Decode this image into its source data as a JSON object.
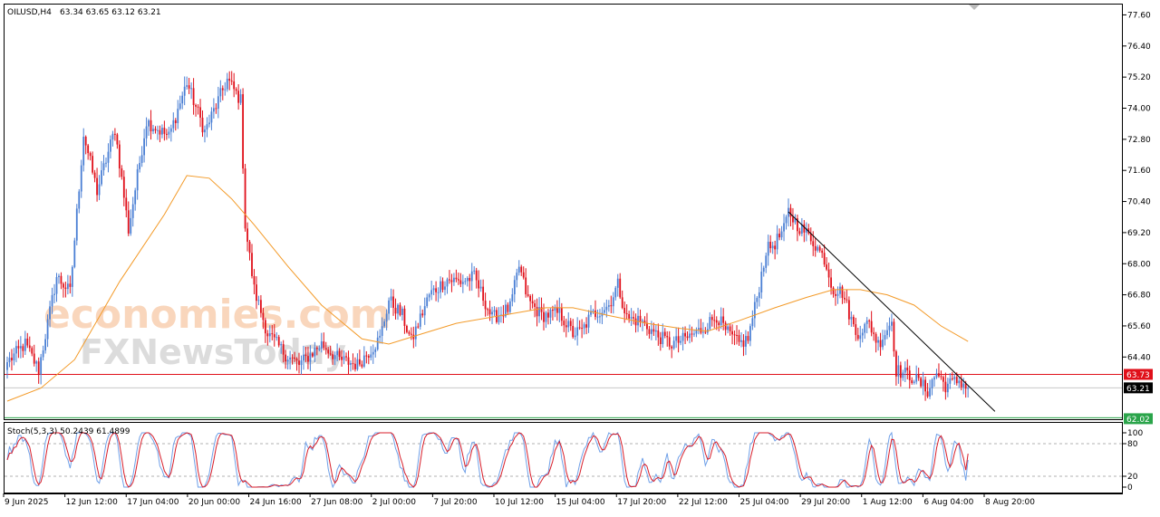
{
  "header": {
    "symbol": "OILUSD,H4",
    "ohlc": "63.34 63.65 63.12 63.21"
  },
  "watermark": {
    "brand_top": "economies.com",
    "brand_bottom": "FXNewsToday"
  },
  "price_axis": {
    "ticks": [
      "77.60",
      "76.40",
      "75.20",
      "74.00",
      "72.80",
      "71.60",
      "70.40",
      "69.20",
      "68.00",
      "66.80",
      "65.60",
      "64.40"
    ],
    "ylim": [
      62.0,
      78.0
    ]
  },
  "price_tags": {
    "resistance": "63.73",
    "current": "63.21",
    "support": "62.02"
  },
  "stoch": {
    "label": "Stoch(5,3,3) 50.2439 61.4899",
    "ticks": [
      "100",
      "80",
      "20",
      "0"
    ],
    "levels": [
      80,
      20
    ]
  },
  "time_axis": {
    "labels": [
      "9 Jun 2025",
      "12 Jun 12:00",
      "17 Jun 04:00",
      "20 Jun 00:00",
      "24 Jun 16:00",
      "27 Jun 08:00",
      "2 Jul 00:00",
      "7 Jul 20:00",
      "10 Jul 12:00",
      "15 Jul 04:00",
      "17 Jul 20:00",
      "22 Jul 12:00",
      "25 Jul 04:00",
      "29 Jul 20:00",
      "1 Aug 12:00",
      "6 Aug 04:00",
      "8 Aug 20:00"
    ]
  },
  "colors": {
    "bull": "#4a7fd4",
    "bear": "#e0101a",
    "ma": "#f39a28",
    "stoch_main": "#6fa0e8",
    "stoch_signal": "#d81e2a",
    "resistance_line": "#e0101a",
    "support_line": "#2aa44a",
    "trendline": "#000000"
  },
  "chart_data": {
    "type": "candlestick",
    "title": "OILUSD,H4",
    "anchors": [
      [
        0,
        64.2
      ],
      [
        8,
        64.9
      ],
      [
        14,
        63.9
      ],
      [
        22,
        67.5
      ],
      [
        28,
        66.9
      ],
      [
        34,
        73.0
      ],
      [
        40,
        70.8
      ],
      [
        48,
        73.2
      ],
      [
        54,
        69.3
      ],
      [
        62,
        73.5
      ],
      [
        72,
        72.9
      ],
      [
        80,
        75.0
      ],
      [
        88,
        73.1
      ],
      [
        92,
        73.9
      ],
      [
        98,
        75.1
      ],
      [
        104,
        74.3
      ],
      [
        106,
        69.5
      ],
      [
        110,
        67.0
      ],
      [
        116,
        65.3
      ],
      [
        124,
        64.5
      ],
      [
        130,
        64.1
      ],
      [
        140,
        64.9
      ],
      [
        148,
        64.3
      ],
      [
        156,
        64.1
      ],
      [
        162,
        64.7
      ],
      [
        166,
        65.1
      ],
      [
        170,
        66.6
      ],
      [
        176,
        66.0
      ],
      [
        180,
        65.0
      ],
      [
        188,
        66.8
      ],
      [
        196,
        67.4
      ],
      [
        202,
        67.3
      ],
      [
        208,
        67.5
      ],
      [
        216,
        65.9
      ],
      [
        224,
        66.3
      ],
      [
        228,
        67.9
      ],
      [
        232,
        66.6
      ],
      [
        238,
        66.0
      ],
      [
        246,
        66.1
      ],
      [
        252,
        65.3
      ],
      [
        256,
        65.4
      ],
      [
        260,
        66.0
      ],
      [
        268,
        66.4
      ],
      [
        272,
        67.2
      ],
      [
        276,
        65.9
      ],
      [
        282,
        65.8
      ],
      [
        290,
        65.2
      ],
      [
        296,
        64.9
      ],
      [
        302,
        65.1
      ],
      [
        310,
        65.5
      ],
      [
        316,
        66.0
      ],
      [
        320,
        65.4
      ],
      [
        326,
        64.9
      ],
      [
        330,
        65.1
      ],
      [
        334,
        66.7
      ],
      [
        338,
        68.5
      ],
      [
        342,
        68.8
      ],
      [
        346,
        69.3
      ],
      [
        348,
        70.0
      ],
      [
        352,
        69.5
      ],
      [
        358,
        69.0
      ],
      [
        364,
        68.2
      ],
      [
        368,
        67.0
      ],
      [
        372,
        66.9
      ],
      [
        378,
        65.3
      ],
      [
        384,
        65.7
      ],
      [
        388,
        64.9
      ],
      [
        394,
        65.8
      ],
      [
        396,
        63.9
      ],
      [
        404,
        63.6
      ],
      [
        410,
        63.1
      ],
      [
        414,
        63.8
      ],
      [
        418,
        63.3
      ],
      [
        424,
        63.5
      ],
      [
        428,
        63.21
      ]
    ],
    "moving_average": [
      [
        0,
        62.7
      ],
      [
        15,
        63.2
      ],
      [
        30,
        64.3
      ],
      [
        50,
        67.3
      ],
      [
        70,
        69.9
      ],
      [
        80,
        71.4
      ],
      [
        90,
        71.3
      ],
      [
        100,
        70.5
      ],
      [
        110,
        69.5
      ],
      [
        125,
        67.9
      ],
      [
        140,
        66.4
      ],
      [
        158,
        65.1
      ],
      [
        170,
        64.9
      ],
      [
        185,
        65.3
      ],
      [
        200,
        65.7
      ],
      [
        220,
        66.0
      ],
      [
        240,
        66.3
      ],
      [
        252,
        66.3
      ],
      [
        268,
        66.0
      ],
      [
        285,
        65.7
      ],
      [
        300,
        65.5
      ],
      [
        312,
        65.4
      ],
      [
        326,
        65.8
      ],
      [
        342,
        66.3
      ],
      [
        356,
        66.7
      ],
      [
        368,
        67.0
      ],
      [
        380,
        67.0
      ],
      [
        392,
        66.8
      ],
      [
        404,
        66.4
      ],
      [
        416,
        65.6
      ],
      [
        428,
        65.0
      ]
    ],
    "trendline": [
      [
        348,
        70.0
      ],
      [
        440,
        62.3
      ]
    ],
    "horizontal_levels": {
      "resistance": 63.73,
      "current": 63.21,
      "support": 62.02
    },
    "stochastic_main_last": 50.2439,
    "stochastic_signal_last": 61.4899
  }
}
